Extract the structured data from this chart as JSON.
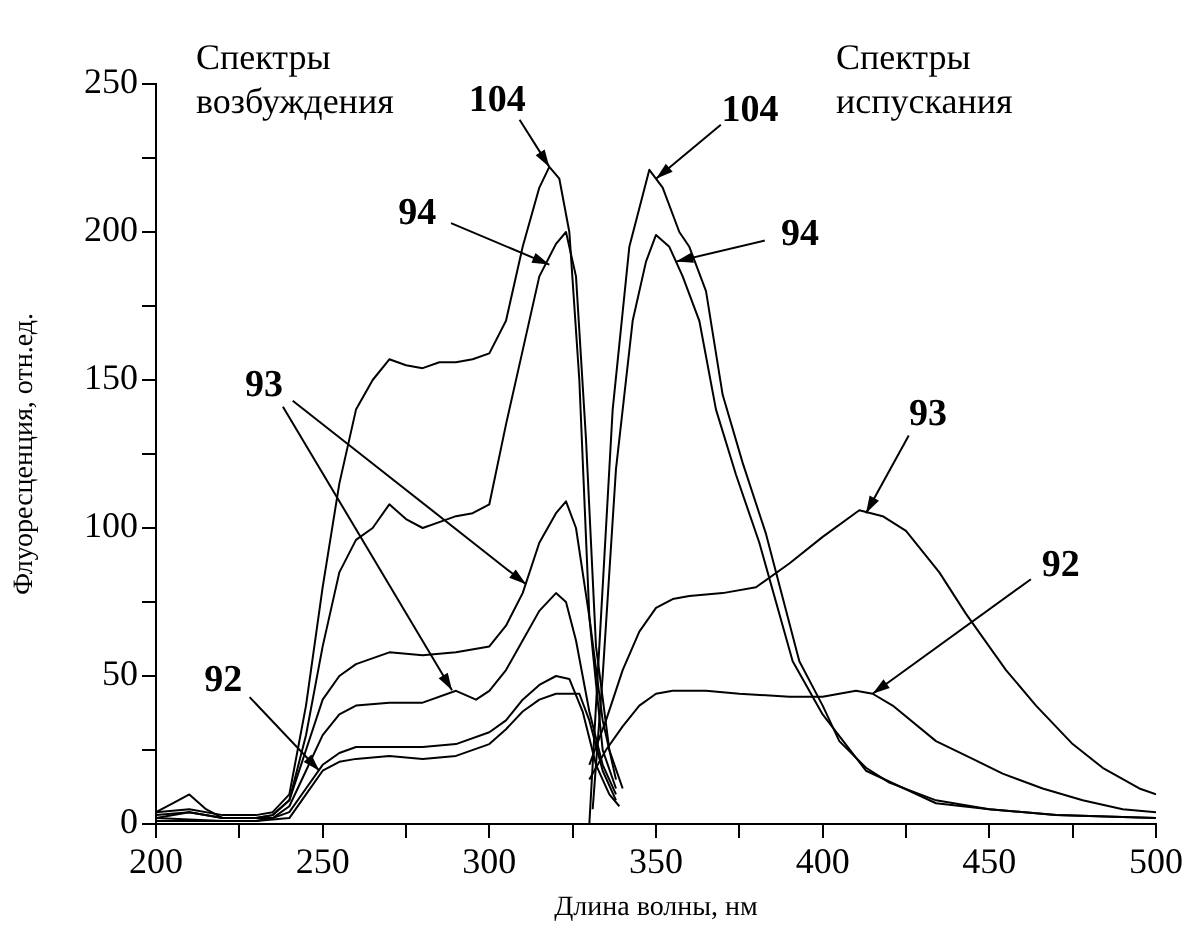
{
  "chart_data": {
    "type": "line",
    "xlabel": "Длина волны, нм",
    "ylabel": "Флуоресценция, отн.ед.",
    "xlim": [
      200,
      500
    ],
    "ylim": [
      0,
      250
    ],
    "xticks": [
      200,
      {
        "value": 225,
        "label": null
      },
      250,
      {
        "value": 275,
        "label": null
      },
      300,
      {
        "value": 325,
        "label": null
      },
      350,
      {
        "value": 375,
        "label": null
      },
      400,
      {
        "value": 425,
        "label": null
      },
      450,
      {
        "value": 475,
        "label": null
      },
      500
    ],
    "yticks": [
      0,
      {
        "value": 25,
        "label": null
      },
      50,
      {
        "value": 75,
        "label": null
      },
      100,
      {
        "value": 125,
        "label": null
      },
      150,
      {
        "value": 175,
        "label": null
      },
      200,
      {
        "value": 225,
        "label": null
      },
      250
    ],
    "grid": false,
    "legend": false,
    "marker": "none",
    "line_style": "solid",
    "series": [
      {
        "color": "#000000",
        "x": [
          200,
          210,
          220,
          230,
          235,
          240,
          245,
          250,
          255,
          260,
          265,
          270,
          275,
          280,
          285,
          290,
          295,
          300,
          305,
          310,
          315,
          318,
          321,
          324,
          327,
          330,
          334,
          338
        ],
        "values": [
          4,
          5,
          3,
          3,
          4,
          10,
          40,
          80,
          115,
          140,
          150,
          157,
          155,
          154,
          156,
          156,
          157,
          159,
          170,
          195,
          215,
          222,
          218,
          200,
          150,
          70,
          25,
          12
        ]
      },
      {
        "color": "#000000",
        "x": [
          200,
          210,
          220,
          230,
          235,
          240,
          245,
          250,
          255,
          260,
          265,
          270,
          275,
          280,
          285,
          290,
          295,
          300,
          305,
          310,
          315,
          320,
          323,
          326,
          329,
          332,
          336,
          340
        ],
        "values": [
          3,
          4,
          2,
          2,
          3,
          8,
          30,
          60,
          85,
          96,
          100,
          108,
          103,
          100,
          102,
          104,
          105,
          108,
          135,
          160,
          185,
          196,
          200,
          185,
          130,
          60,
          25,
          12
        ]
      },
      {
        "color": "#000000",
        "x": [
          200,
          205,
          210,
          215,
          220,
          230,
          235,
          240,
          245,
          250,
          255,
          260,
          270,
          280,
          290,
          300,
          305,
          310,
          315,
          320,
          323,
          326,
          330,
          334,
          338
        ],
        "values": [
          4,
          7,
          10,
          5,
          2,
          2,
          3,
          8,
          25,
          42,
          50,
          54,
          58,
          57,
          58,
          60,
          67,
          78,
          95,
          105,
          109,
          100,
          70,
          35,
          15
        ]
      },
      {
        "color": "#000000",
        "x": [
          200,
          210,
          220,
          230,
          235,
          240,
          245,
          250,
          255,
          260,
          270,
          280,
          290,
          296,
          300,
          305,
          310,
          315,
          320,
          323,
          326,
          330,
          334,
          338
        ],
        "values": [
          2,
          4,
          2,
          2,
          2,
          6,
          18,
          30,
          37,
          40,
          41,
          41,
          45,
          42,
          45,
          52,
          62,
          72,
          78,
          75,
          62,
          38,
          20,
          10
        ]
      },
      {
        "color": "#000000",
        "x": [
          200,
          220,
          230,
          235,
          240,
          245,
          250,
          255,
          260,
          270,
          280,
          290,
          300,
          305,
          310,
          315,
          320,
          324,
          328,
          332,
          336,
          339
        ],
        "values": [
          2,
          1,
          1,
          2,
          4,
          12,
          20,
          24,
          26,
          26,
          26,
          27,
          31,
          35,
          42,
          47,
          50,
          49,
          38,
          20,
          10,
          6
        ]
      },
      {
        "color": "#000000",
        "x": [
          200,
          220,
          230,
          240,
          245,
          250,
          255,
          260,
          270,
          280,
          290,
          300,
          305,
          310,
          315,
          320,
          327,
          330,
          334,
          338
        ],
        "values": [
          1,
          1,
          1,
          2,
          10,
          18,
          21,
          22,
          23,
          22,
          23,
          27,
          32,
          38,
          42,
          44,
          44,
          35,
          18,
          8
        ]
      },
      {
        "color": "#000000",
        "x": [
          330,
          333,
          337,
          342,
          348,
          352,
          357,
          360,
          365,
          370,
          376,
          383,
          393,
          400,
          405,
          413,
          420,
          434,
          450,
          470,
          500
        ],
        "values": [
          0,
          60,
          140,
          195,
          221,
          215,
          200,
          195,
          180,
          145,
          122,
          98,
          55,
          40,
          28,
          19,
          14,
          8,
          5,
          3,
          2
        ]
      },
      {
        "color": "#000000",
        "x": [
          331,
          334,
          338,
          343,
          347,
          350,
          354,
          358,
          363,
          368,
          374,
          381,
          391,
          400,
          413,
          434,
          450,
          470,
          500
        ],
        "values": [
          5,
          50,
          120,
          170,
          190,
          199,
          195,
          185,
          170,
          140,
          118,
          95,
          55,
          37,
          18,
          7,
          5,
          3,
          2
        ]
      },
      {
        "color": "#000000",
        "x": [
          330,
          335,
          340,
          345,
          350,
          355,
          360,
          370,
          380,
          390,
          400,
          411,
          418,
          425,
          435,
          443,
          455,
          464,
          475,
          484,
          495,
          500
        ],
        "values": [
          20,
          35,
          52,
          65,
          73,
          76,
          77,
          78,
          80,
          88,
          97,
          106,
          104,
          99,
          85,
          71,
          52,
          40,
          27,
          19,
          12,
          10
        ]
      },
      {
        "color": "#000000",
        "x": [
          330,
          335,
          340,
          345,
          350,
          355,
          365,
          375,
          390,
          400,
          410,
          415,
          421,
          434,
          445,
          454,
          466,
          478,
          490,
          500
        ],
        "values": [
          15,
          25,
          33,
          40,
          44,
          45,
          45,
          44,
          43,
          43,
          45,
          44,
          40,
          28,
          22,
          17,
          12,
          8,
          5,
          4
        ]
      }
    ],
    "annotations": [
      {
        "text": "104",
        "x": 318,
        "y": 222
      },
      {
        "text": "104",
        "x": 350,
        "y": 218
      },
      {
        "text": "94",
        "x": 318,
        "y": 189
      },
      {
        "text": "94",
        "x": 356,
        "y": 190
      },
      {
        "text": "93",
        "x": 311,
        "y": 81
      },
      {
        "text": "93",
        "x": 413,
        "y": 105
      },
      {
        "text": "92",
        "x": 249,
        "y": 18
      },
      {
        "text": "92",
        "x": 415,
        "y": 44
      },
      "Спектры возбуждения",
      "Спектры испускания"
    ]
  }
}
